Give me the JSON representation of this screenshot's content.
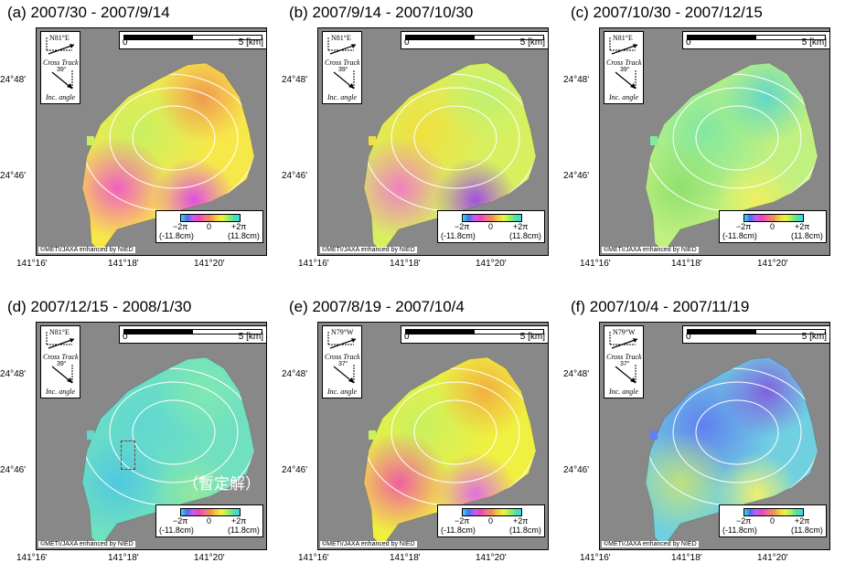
{
  "panels": [
    {
      "title": "(a) 2007/30 - 2007/9/14",
      "heading": "N81°E",
      "angle": "39°",
      "scheme": "a"
    },
    {
      "title": "(b) 2007/9/14 - 2007/10/30",
      "heading": "N81°E",
      "angle": "39°",
      "scheme": "b"
    },
    {
      "title": "(c) 2007/10/30 - 2007/12/15",
      "heading": "N81°E",
      "angle": "39°",
      "scheme": "c"
    },
    {
      "title": "(d) 2007/12/15 - 2008/1/30",
      "heading": "N81°E",
      "angle": "39°",
      "scheme": "d"
    },
    {
      "title": "(e) 2007/8/19 - 2007/10/4",
      "heading": "N79°W",
      "angle": "37°",
      "scheme": "e"
    },
    {
      "title": "(f) 2007/10/4 - 2007/11/19",
      "heading": "N79°W",
      "angle": "37°",
      "scheme": "f"
    }
  ],
  "map_labels": {
    "scale_zero": "0",
    "scale_km": "5 [km]",
    "cross_track": "Cross Track",
    "inc_angle": "Inc. angle",
    "credit": "©METI/JAXA enhanced by NIED",
    "cbar_min": "−2π",
    "cbar_mid": "0",
    "cbar_max": "+2π",
    "cbar_min_cm": "(-11.8cm)",
    "cbar_max_cm": "(11.8cm)",
    "lat_labels": [
      "24°48'",
      "24°46'"
    ],
    "lon_labels": [
      "141°16'",
      "141°18'",
      "141°20'"
    ],
    "provisional_note": "（暫定解）"
  },
  "colors": {
    "background": "#888888",
    "fringe_palette": [
      "#3bd6f0",
      "#4a6cf0",
      "#c060f0",
      "#f040c0",
      "#f07090",
      "#f09050",
      "#f0d040",
      "#f0f040",
      "#a0f060",
      "#50e0a0"
    ]
  }
}
